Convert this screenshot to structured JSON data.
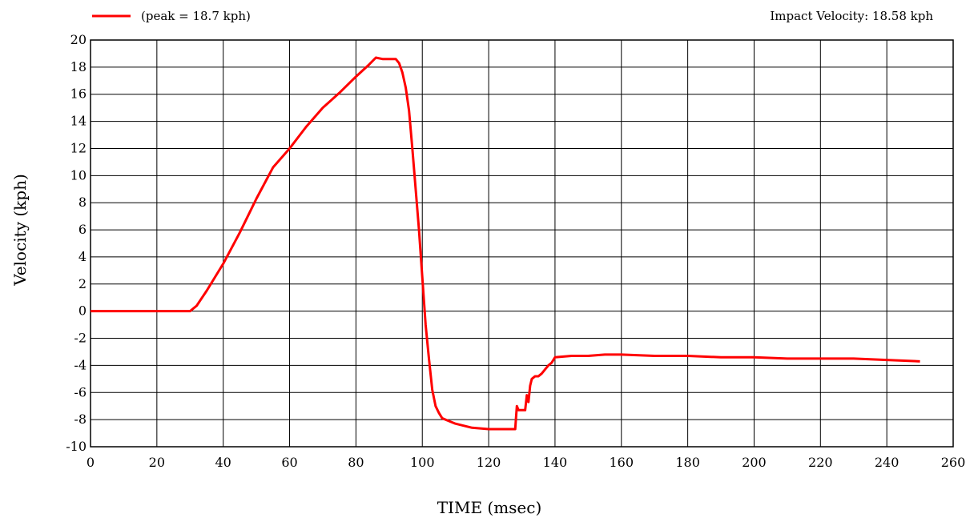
{
  "chart_data": {
    "type": "line",
    "legend": {
      "label": "(peak = 18.7 kph)",
      "placement": "top-left"
    },
    "annotation": "Impact Velocity: 18.58 kph",
    "xlabel": "TIME (msec)",
    "ylabel": "Velocity (kph)",
    "xlim": [
      0,
      260
    ],
    "ylim": [
      -10,
      20
    ],
    "x_ticks": [
      0,
      20,
      40,
      60,
      80,
      100,
      120,
      140,
      160,
      180,
      200,
      220,
      240,
      260
    ],
    "y_ticks": [
      -10,
      -8,
      -6,
      -4,
      -2,
      0,
      2,
      4,
      6,
      8,
      10,
      12,
      14,
      16,
      18,
      20
    ],
    "grid": true,
    "series": [
      {
        "color": "#ff0000",
        "x": [
          0,
          30,
          32,
          35,
          40,
          45,
          50,
          55,
          60,
          65,
          70,
          75,
          80,
          84,
          86,
          88,
          90,
          92,
          93,
          94,
          95,
          96,
          97,
          98,
          99,
          100,
          101,
          102,
          103,
          104,
          105,
          106,
          108,
          110,
          115,
          120,
          125,
          128,
          128.5,
          129,
          130,
          131,
          131.5,
          132,
          132.5,
          133,
          134,
          135,
          136,
          137,
          138,
          139,
          140,
          145,
          150,
          155,
          160,
          170,
          180,
          190,
          200,
          210,
          220,
          230,
          240,
          250
        ],
        "y": [
          0,
          0,
          0.4,
          1.5,
          3.5,
          5.8,
          8.3,
          10.6,
          12.0,
          13.6,
          15.0,
          16.1,
          17.3,
          18.2,
          18.7,
          18.6,
          18.6,
          18.6,
          18.3,
          17.6,
          16.5,
          14.8,
          12.0,
          9.0,
          6.0,
          2.5,
          -1.0,
          -3.5,
          -5.8,
          -7.0,
          -7.5,
          -7.9,
          -8.1,
          -8.3,
          -8.6,
          -8.7,
          -8.7,
          -8.7,
          -7.0,
          -7.3,
          -7.3,
          -7.3,
          -6.2,
          -6.7,
          -5.5,
          -5.0,
          -4.8,
          -4.8,
          -4.6,
          -4.3,
          -4.0,
          -3.8,
          -3.4,
          -3.3,
          -3.3,
          -3.2,
          -3.2,
          -3.3,
          -3.3,
          -3.4,
          -3.4,
          -3.5,
          -3.5,
          -3.5,
          -3.6,
          -3.7
        ]
      }
    ]
  }
}
